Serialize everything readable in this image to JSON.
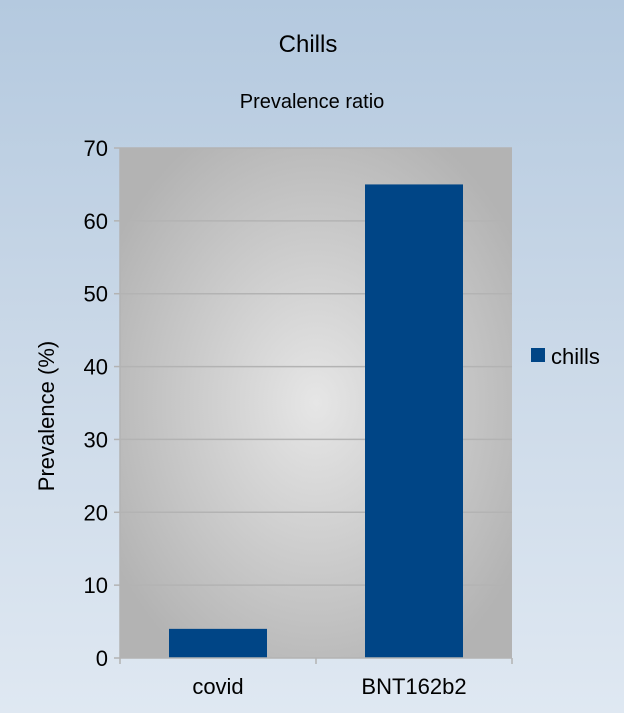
{
  "chart_data": {
    "type": "bar",
    "title": "Chills",
    "subtitle": "Prevalence ratio",
    "xlabel": "",
    "ylabel": "Prevalence (%)",
    "categories": [
      "covid",
      "BNT162b2"
    ],
    "series": [
      {
        "name": "chills",
        "values": [
          4,
          65
        ]
      }
    ],
    "ylim": [
      0,
      70
    ],
    "yticks": [
      "0",
      "10",
      "20",
      "30",
      "40",
      "50",
      "60",
      "70"
    ],
    "grid": true,
    "legend": "right"
  },
  "colors": {
    "bar": "#004586",
    "plot_bg_center": "#e6e6e6",
    "plot_bg_edge": "#b3b3b3",
    "grid": "#b3b3b3",
    "axis": "#b3b3b3"
  }
}
